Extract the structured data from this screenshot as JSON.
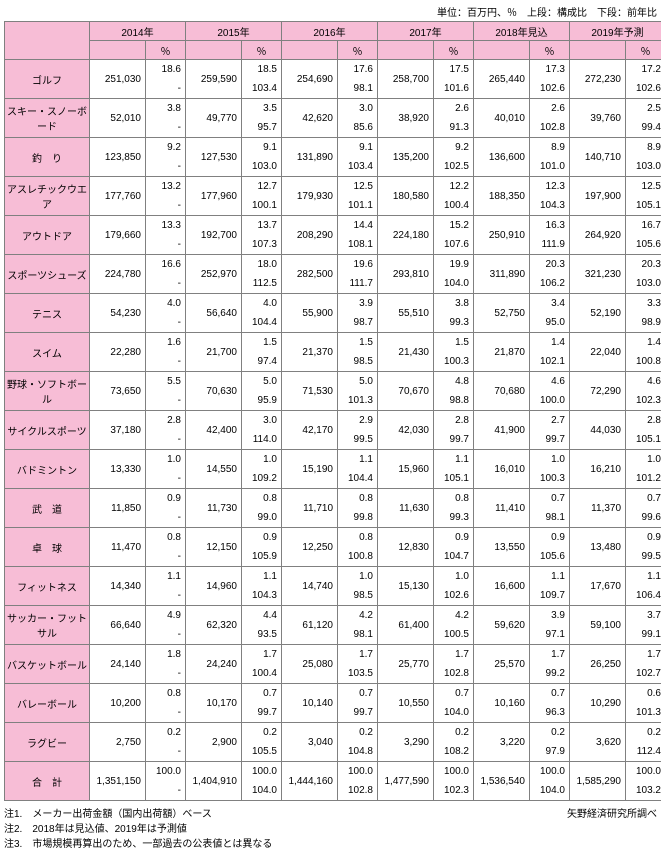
{
  "unit_note": "単位：百万円、％　上段：構成比　下段：前年比",
  "header": {
    "years": [
      "2014年",
      "2015年",
      "2016年",
      "2017年",
      "2018年見込",
      "2019年予測"
    ],
    "pct_label": "％"
  },
  "colors": {
    "header_bg": "#f7bdd6",
    "border": "#808080",
    "bg": "#ffffff"
  },
  "categories": [
    {
      "label": "ゴルフ",
      "cells": [
        {
          "v": "251,030",
          "t": "18.6",
          "b": "-"
        },
        {
          "v": "259,590",
          "t": "18.5",
          "b": "103.4"
        },
        {
          "v": "254,690",
          "t": "17.6",
          "b": "98.1"
        },
        {
          "v": "258,700",
          "t": "17.5",
          "b": "101.6"
        },
        {
          "v": "265,440",
          "t": "17.3",
          "b": "102.6"
        },
        {
          "v": "272,230",
          "t": "17.2",
          "b": "102.6"
        }
      ]
    },
    {
      "label": "スキー・スノーボード",
      "cells": [
        {
          "v": "52,010",
          "t": "3.8",
          "b": "-"
        },
        {
          "v": "49,770",
          "t": "3.5",
          "b": "95.7"
        },
        {
          "v": "42,620",
          "t": "3.0",
          "b": "85.6"
        },
        {
          "v": "38,920",
          "t": "2.6",
          "b": "91.3"
        },
        {
          "v": "40,010",
          "t": "2.6",
          "b": "102.8"
        },
        {
          "v": "39,760",
          "t": "2.5",
          "b": "99.4"
        }
      ]
    },
    {
      "label": "釣　り",
      "cells": [
        {
          "v": "123,850",
          "t": "9.2",
          "b": "-"
        },
        {
          "v": "127,530",
          "t": "9.1",
          "b": "103.0"
        },
        {
          "v": "131,890",
          "t": "9.1",
          "b": "103.4"
        },
        {
          "v": "135,200",
          "t": "9.2",
          "b": "102.5"
        },
        {
          "v": "136,600",
          "t": "8.9",
          "b": "101.0"
        },
        {
          "v": "140,710",
          "t": "8.9",
          "b": "103.0"
        }
      ]
    },
    {
      "label": "アスレチックウエア",
      "cells": [
        {
          "v": "177,760",
          "t": "13.2",
          "b": "-"
        },
        {
          "v": "177,960",
          "t": "12.7",
          "b": "100.1"
        },
        {
          "v": "179,930",
          "t": "12.5",
          "b": "101.1"
        },
        {
          "v": "180,580",
          "t": "12.2",
          "b": "100.4"
        },
        {
          "v": "188,350",
          "t": "12.3",
          "b": "104.3"
        },
        {
          "v": "197,900",
          "t": "12.5",
          "b": "105.1"
        }
      ]
    },
    {
      "label": "アウトドア",
      "cells": [
        {
          "v": "179,660",
          "t": "13.3",
          "b": "-"
        },
        {
          "v": "192,700",
          "t": "13.7",
          "b": "107.3"
        },
        {
          "v": "208,290",
          "t": "14.4",
          "b": "108.1"
        },
        {
          "v": "224,180",
          "t": "15.2",
          "b": "107.6"
        },
        {
          "v": "250,910",
          "t": "16.3",
          "b": "111.9"
        },
        {
          "v": "264,920",
          "t": "16.7",
          "b": "105.6"
        }
      ]
    },
    {
      "label": "スポーツシューズ",
      "cells": [
        {
          "v": "224,780",
          "t": "16.6",
          "b": "-"
        },
        {
          "v": "252,970",
          "t": "18.0",
          "b": "112.5"
        },
        {
          "v": "282,500",
          "t": "19.6",
          "b": "111.7"
        },
        {
          "v": "293,810",
          "t": "19.9",
          "b": "104.0"
        },
        {
          "v": "311,890",
          "t": "20.3",
          "b": "106.2"
        },
        {
          "v": "321,230",
          "t": "20.3",
          "b": "103.0"
        }
      ]
    },
    {
      "label": "テニス",
      "cells": [
        {
          "v": "54,230",
          "t": "4.0",
          "b": "-"
        },
        {
          "v": "56,640",
          "t": "4.0",
          "b": "104.4"
        },
        {
          "v": "55,900",
          "t": "3.9",
          "b": "98.7"
        },
        {
          "v": "55,510",
          "t": "3.8",
          "b": "99.3"
        },
        {
          "v": "52,750",
          "t": "3.4",
          "b": "95.0"
        },
        {
          "v": "52,190",
          "t": "3.3",
          "b": "98.9"
        }
      ]
    },
    {
      "label": "スイム",
      "cells": [
        {
          "v": "22,280",
          "t": "1.6",
          "b": "-"
        },
        {
          "v": "21,700",
          "t": "1.5",
          "b": "97.4"
        },
        {
          "v": "21,370",
          "t": "1.5",
          "b": "98.5"
        },
        {
          "v": "21,430",
          "t": "1.5",
          "b": "100.3"
        },
        {
          "v": "21,870",
          "t": "1.4",
          "b": "102.1"
        },
        {
          "v": "22,040",
          "t": "1.4",
          "b": "100.8"
        }
      ]
    },
    {
      "label": "野球・ソフトボール",
      "cells": [
        {
          "v": "73,650",
          "t": "5.5",
          "b": "-"
        },
        {
          "v": "70,630",
          "t": "5.0",
          "b": "95.9"
        },
        {
          "v": "71,530",
          "t": "5.0",
          "b": "101.3"
        },
        {
          "v": "70,670",
          "t": "4.8",
          "b": "98.8"
        },
        {
          "v": "70,680",
          "t": "4.6",
          "b": "100.0"
        },
        {
          "v": "72,290",
          "t": "4.6",
          "b": "102.3"
        }
      ]
    },
    {
      "label": "サイクルスポーツ",
      "cells": [
        {
          "v": "37,180",
          "t": "2.8",
          "b": "-"
        },
        {
          "v": "42,400",
          "t": "3.0",
          "b": "114.0"
        },
        {
          "v": "42,170",
          "t": "2.9",
          "b": "99.5"
        },
        {
          "v": "42,030",
          "t": "2.8",
          "b": "99.7"
        },
        {
          "v": "41,900",
          "t": "2.7",
          "b": "99.7"
        },
        {
          "v": "44,030",
          "t": "2.8",
          "b": "105.1"
        }
      ]
    },
    {
      "label": "バドミントン",
      "cells": [
        {
          "v": "13,330",
          "t": "1.0",
          "b": "-"
        },
        {
          "v": "14,550",
          "t": "1.0",
          "b": "109.2"
        },
        {
          "v": "15,190",
          "t": "1.1",
          "b": "104.4"
        },
        {
          "v": "15,960",
          "t": "1.1",
          "b": "105.1"
        },
        {
          "v": "16,010",
          "t": "1.0",
          "b": "100.3"
        },
        {
          "v": "16,210",
          "t": "1.0",
          "b": "101.2"
        }
      ]
    },
    {
      "label": "武　道",
      "cells": [
        {
          "v": "11,850",
          "t": "0.9",
          "b": "-"
        },
        {
          "v": "11,730",
          "t": "0.8",
          "b": "99.0"
        },
        {
          "v": "11,710",
          "t": "0.8",
          "b": "99.8"
        },
        {
          "v": "11,630",
          "t": "0.8",
          "b": "99.3"
        },
        {
          "v": "11,410",
          "t": "0.7",
          "b": "98.1"
        },
        {
          "v": "11,370",
          "t": "0.7",
          "b": "99.6"
        }
      ]
    },
    {
      "label": "卓　球",
      "cells": [
        {
          "v": "11,470",
          "t": "0.8",
          "b": "-"
        },
        {
          "v": "12,150",
          "t": "0.9",
          "b": "105.9"
        },
        {
          "v": "12,250",
          "t": "0.8",
          "b": "100.8"
        },
        {
          "v": "12,830",
          "t": "0.9",
          "b": "104.7"
        },
        {
          "v": "13,550",
          "t": "0.9",
          "b": "105.6"
        },
        {
          "v": "13,480",
          "t": "0.9",
          "b": "99.5"
        }
      ]
    },
    {
      "label": "フィットネス",
      "cells": [
        {
          "v": "14,340",
          "t": "1.1",
          "b": "-"
        },
        {
          "v": "14,960",
          "t": "1.1",
          "b": "104.3"
        },
        {
          "v": "14,740",
          "t": "1.0",
          "b": "98.5"
        },
        {
          "v": "15,130",
          "t": "1.0",
          "b": "102.6"
        },
        {
          "v": "16,600",
          "t": "1.1",
          "b": "109.7"
        },
        {
          "v": "17,670",
          "t": "1.1",
          "b": "106.4"
        }
      ]
    },
    {
      "label": "サッカー・フットサル",
      "cells": [
        {
          "v": "66,640",
          "t": "4.9",
          "b": "-"
        },
        {
          "v": "62,320",
          "t": "4.4",
          "b": "93.5"
        },
        {
          "v": "61,120",
          "t": "4.2",
          "b": "98.1"
        },
        {
          "v": "61,400",
          "t": "4.2",
          "b": "100.5"
        },
        {
          "v": "59,620",
          "t": "3.9",
          "b": "97.1"
        },
        {
          "v": "59,100",
          "t": "3.7",
          "b": "99.1"
        }
      ]
    },
    {
      "label": "バスケットボール",
      "cells": [
        {
          "v": "24,140",
          "t": "1.8",
          "b": "-"
        },
        {
          "v": "24,240",
          "t": "1.7",
          "b": "100.4"
        },
        {
          "v": "25,080",
          "t": "1.7",
          "b": "103.5"
        },
        {
          "v": "25,770",
          "t": "1.7",
          "b": "102.8"
        },
        {
          "v": "25,570",
          "t": "1.7",
          "b": "99.2"
        },
        {
          "v": "26,250",
          "t": "1.7",
          "b": "102.7"
        }
      ]
    },
    {
      "label": "バレーボール",
      "cells": [
        {
          "v": "10,200",
          "t": "0.8",
          "b": "-"
        },
        {
          "v": "10,170",
          "t": "0.7",
          "b": "99.7"
        },
        {
          "v": "10,140",
          "t": "0.7",
          "b": "99.7"
        },
        {
          "v": "10,550",
          "t": "0.7",
          "b": "104.0"
        },
        {
          "v": "10,160",
          "t": "0.7",
          "b": "96.3"
        },
        {
          "v": "10,290",
          "t": "0.6",
          "b": "101.3"
        }
      ]
    },
    {
      "label": "ラグビー",
      "cells": [
        {
          "v": "2,750",
          "t": "0.2",
          "b": "-"
        },
        {
          "v": "2,900",
          "t": "0.2",
          "b": "105.5"
        },
        {
          "v": "3,040",
          "t": "0.2",
          "b": "104.8"
        },
        {
          "v": "3,290",
          "t": "0.2",
          "b": "108.2"
        },
        {
          "v": "3,220",
          "t": "0.2",
          "b": "97.9"
        },
        {
          "v": "3,620",
          "t": "0.2",
          "b": "112.4"
        }
      ]
    },
    {
      "label": "合　計",
      "cells": [
        {
          "v": "1,351,150",
          "t": "100.0",
          "b": "-"
        },
        {
          "v": "1,404,910",
          "t": "100.0",
          "b": "104.0"
        },
        {
          "v": "1,444,160",
          "t": "100.0",
          "b": "102.8"
        },
        {
          "v": "1,477,590",
          "t": "100.0",
          "b": "102.3"
        },
        {
          "v": "1,536,540",
          "t": "100.0",
          "b": "104.0"
        },
        {
          "v": "1,585,290",
          "t": "100.0",
          "b": "103.2"
        }
      ]
    }
  ],
  "footnotes": {
    "source": "矢野経済研究所調べ",
    "lines": [
      "注1.　メーカー出荷金額（国内出荷額）ベース",
      "注2.　2018年は見込値、2019年は予測値",
      "注3.　市場規模再算出のため、一部過去の公表値とは異なる"
    ]
  }
}
